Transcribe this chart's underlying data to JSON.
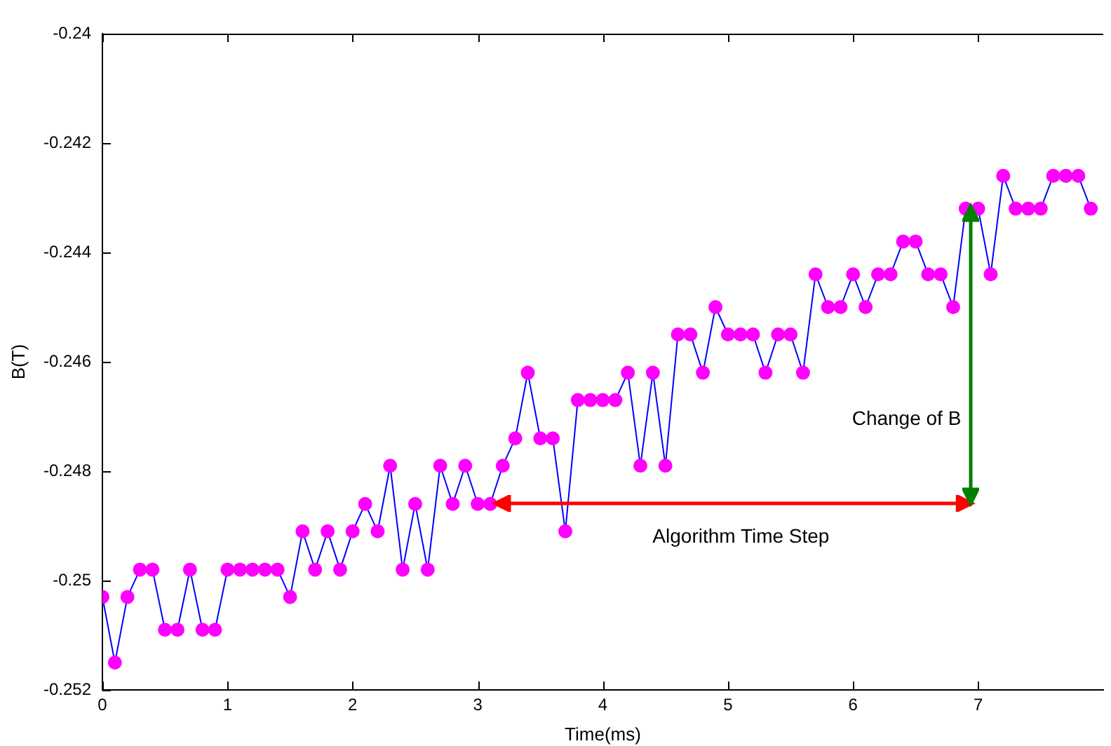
{
  "chart_data": {
    "type": "line",
    "xlabel": "Time(ms)",
    "ylabel": "B(T)",
    "x": [
      0,
      0.1,
      0.2,
      0.3,
      0.4,
      0.5,
      0.6,
      0.7,
      0.8,
      0.9,
      1,
      1.1,
      1.2,
      1.3,
      1.4,
      1.5,
      1.6,
      1.7,
      1.8,
      1.9,
      2,
      2.1,
      2.2,
      2.3,
      2.4,
      2.5,
      2.6,
      2.7,
      2.8,
      2.9,
      3,
      3.1,
      3.2,
      3.3,
      3.4,
      3.5,
      3.6,
      3.7,
      3.8,
      3.9,
      4,
      4.1,
      4.2,
      4.3,
      4.4,
      4.5,
      4.6,
      4.7,
      4.8,
      4.9,
      5,
      5.1,
      5.2,
      5.3,
      5.4,
      5.5,
      5.6,
      5.7,
      5.8,
      5.9,
      6,
      6.1,
      6.2,
      6.3,
      6.4,
      6.5,
      6.6,
      6.7,
      6.8,
      6.9,
      7,
      7.1,
      7.2,
      7.3,
      7.4,
      7.5,
      7.6,
      7.7,
      7.8,
      7.9
    ],
    "series": [
      {
        "color": "#0000ff",
        "colors": [
          "#ff00ff",
          "#ff00ff",
          "#ff00ff",
          "#ff00ff",
          "#ff00ff",
          "#ff00ff",
          "#ff00ff",
          "#ff00ff",
          "#ff00ff",
          "#ff00ff",
          "#ff00ff",
          "#ff00ff",
          "#ff00ff",
          "#ff00ff",
          "#ff00ff",
          "#ff00ff",
          "#ff00ff",
          "#ff00ff",
          "#ff00ff",
          "#ff00ff",
          "#ff00ff",
          "#ff00ff",
          "#ff00ff",
          "#ff00ff",
          "#ff00ff",
          "#ff00ff",
          "#ff00ff",
          "#ff00ff",
          "#ff00ff",
          "#ff00ff",
          "#ff00ff",
          "#ff00ff",
          "#ff00ff",
          "#ff00ff",
          "#ff00ff",
          "#ff00ff",
          "#ff00ff",
          "#ff00ff",
          "#ff00ff",
          "#ff00ff",
          "#ff00ff",
          "#ff00ff",
          "#ff00ff",
          "#ff00ff",
          "#ff00ff",
          "#ff00ff",
          "#ff00ff",
          "#ff00ff",
          "#ff00ff",
          "#ff00ff",
          "#ff00ff",
          "#ff00ff",
          "#ff00ff",
          "#ff00ff",
          "#ff00ff",
          "#ff00ff",
          "#ff00ff",
          "#ff00ff",
          "#ff00ff",
          "#ff00ff",
          "#ff00ff",
          "#ff00ff",
          "#ff00ff",
          "#ff00ff",
          "#ff00ff",
          "#ff00ff",
          "#ff00ff",
          "#ff00ff",
          "#ff00ff",
          "#ff00ff",
          "#ff00ff",
          "#ff00ff",
          "#ff00ff",
          "#ff00ff",
          "#ff00ff",
          "#ff00ff",
          "#ff00ff",
          "#ff00ff",
          "#ff00ff",
          "#ff00ff"
        ],
        "values": [
          -0.2503,
          -0.2515,
          -0.2503,
          -0.2498,
          -0.2498,
          -0.2509,
          -0.2509,
          -0.2498,
          -0.2509,
          -0.2509,
          -0.2498,
          -0.2498,
          -0.2498,
          -0.2498,
          -0.2498,
          -0.2503,
          -0.2491,
          -0.2498,
          -0.2491,
          -0.2498,
          -0.2491,
          -0.2486,
          -0.2491,
          -0.2479,
          -0.2498,
          -0.2486,
          -0.2498,
          -0.2479,
          -0.2486,
          -0.2479,
          -0.2486,
          -0.2486,
          -0.2479,
          -0.2474,
          -0.2462,
          -0.2474,
          -0.2474,
          -0.2491,
          -0.2467,
          -0.2467,
          -0.2467,
          -0.2467,
          -0.2462,
          -0.2479,
          -0.2462,
          -0.2479,
          -0.2455,
          -0.2455,
          -0.2462,
          -0.245,
          -0.2455,
          -0.2455,
          -0.2455,
          -0.2462,
          -0.2455,
          -0.2455,
          -0.2462,
          -0.2444,
          -0.245,
          -0.245,
          -0.2444,
          -0.245,
          -0.2444,
          -0.2444,
          -0.2438,
          -0.2438,
          -0.2444,
          -0.2444,
          -0.245,
          -0.2432,
          -0.2432,
          -0.2444,
          -0.2426,
          -0.2432,
          -0.2432,
          -0.2432,
          -0.2426,
          -0.2426,
          -0.2426,
          -0.2432
        ]
      }
    ],
    "xlim": [
      0,
      8
    ],
    "xticks": [
      0,
      1,
      2,
      3,
      4,
      5,
      6,
      7
    ],
    "ylim": [
      -0.252,
      -0.24
    ],
    "yticks": [
      -0.252,
      -0.25,
      -0.248,
      -0.246,
      -0.244,
      -0.242,
      -0.24
    ],
    "marker": "circle",
    "line_style": "solid",
    "grid": false,
    "legend": false,
    "annotations": [
      "Algorithm Time Step",
      "Change of B"
    ]
  }
}
